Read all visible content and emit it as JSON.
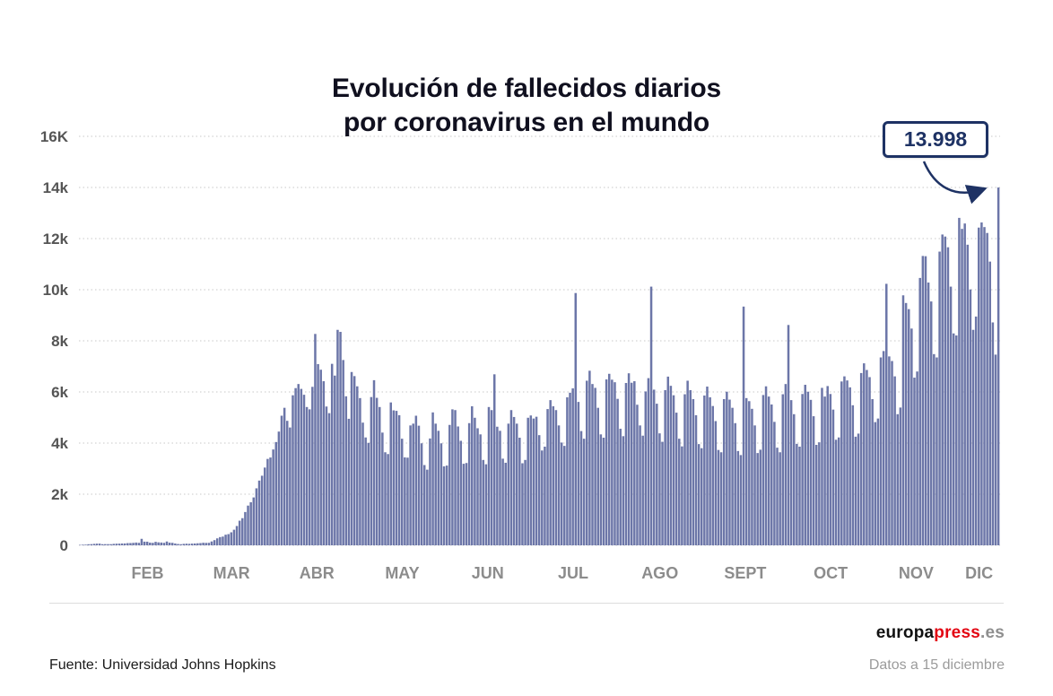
{
  "title": {
    "line1": "Evolución de fallecidos diarios",
    "line2": "por coronavirus en el mundo"
  },
  "annotation": {
    "label": "13.998",
    "value": 13998
  },
  "footer": {
    "source": "Fuente: Universidad Johns Hopkins",
    "brand": {
      "part1": "europa",
      "part2": "press",
      "part3": ".es"
    },
    "date_note": "Datos a 15 diciembre"
  },
  "colors": {
    "bar": "#6c76a8",
    "grid": "#c8c8c8",
    "axis_text": "#555555",
    "month_text": "#8c8c8c",
    "annotation": "#1e3264",
    "brand_red": "#e30613",
    "brand_gray": "#8f8f8f"
  },
  "chart_data": {
    "type": "bar",
    "title": "Evolución de fallecidos diarios por coronavirus en el mundo",
    "xlabel": "",
    "ylabel": "",
    "ylim": [
      0,
      16000
    ],
    "grid": "dotted-horizontal",
    "legend": "none",
    "yticks": [
      {
        "v": 0,
        "label": "0"
      },
      {
        "v": 2000,
        "label": "2k"
      },
      {
        "v": 4000,
        "label": "4k"
      },
      {
        "v": 6000,
        "label": "6k"
      },
      {
        "v": 8000,
        "label": "8k"
      },
      {
        "v": 10000,
        "label": "10k"
      },
      {
        "v": 12000,
        "label": "12k"
      },
      {
        "v": 14000,
        "label": "14k"
      },
      {
        "v": 16000,
        "label": "16K"
      }
    ],
    "months": [
      {
        "label": "",
        "days": 10
      },
      {
        "label": "FEB",
        "days": 29
      },
      {
        "label": "MAR",
        "days": 31
      },
      {
        "label": "ABR",
        "days": 30
      },
      {
        "label": "MAY",
        "days": 31
      },
      {
        "label": "JUN",
        "days": 30
      },
      {
        "label": "JUL",
        "days": 31
      },
      {
        "label": "AGO",
        "days": 31
      },
      {
        "label": "SEPT",
        "days": 30
      },
      {
        "label": "OCT",
        "days": 31
      },
      {
        "label": "NOV",
        "days": 30
      },
      {
        "label": "DIC",
        "days": 15
      }
    ],
    "values": [
      17,
      24,
      26,
      42,
      46,
      57,
      65,
      66,
      43,
      46,
      46,
      45,
      57,
      64,
      66,
      72,
      73,
      86,
      89,
      97,
      108,
      97,
      254,
      143,
      142,
      106,
      98,
      136,
      116,
      109,
      98,
      150,
      106,
      98,
      71,
      52,
      44,
      57,
      64,
      58,
      67,
      72,
      80,
      87,
      101,
      95,
      98,
      151,
      203,
      272,
      322,
      342,
      415,
      438,
      509,
      610,
      756,
      963,
      1062,
      1303,
      1554,
      1684,
      1873,
      2230,
      2533,
      2723,
      3042,
      3380,
      3435,
      3750,
      4040,
      4450,
      5070,
      5380,
      4870,
      4610,
      5870,
      6150,
      6310,
      6120,
      5890,
      5410,
      5320,
      6200,
      8270,
      7090,
      6870,
      6420,
      5430,
      5170,
      7100,
      6640,
      8430,
      8350,
      7250,
      5830,
      4950,
      6780,
      6620,
      6220,
      5760,
      4800,
      4220,
      4010,
      5800,
      6460,
      5770,
      5410,
      4410,
      3640,
      3570,
      5590,
      5280,
      5260,
      5090,
      4170,
      3440,
      3430,
      4690,
      4760,
      5070,
      4680,
      3990,
      3140,
      2960,
      4180,
      5200,
      4760,
      4480,
      3990,
      3090,
      3120,
      4710,
      5320,
      5290,
      4650,
      4090,
      3190,
      3220,
      4780,
      5440,
      4990,
      4580,
      4340,
      3340,
      3170,
      5410,
      5290,
      6690,
      4640,
      4480,
      3390,
      3230,
      4760,
      5290,
      5020,
      4760,
      4210,
      3210,
      3340,
      4990,
      5080,
      4960,
      5030,
      4310,
      3710,
      3860,
      5330,
      5680,
      5440,
      5290,
      4690,
      4020,
      3890,
      5790,
      5970,
      6140,
      9870,
      5610,
      4470,
      4170,
      6440,
      6830,
      6310,
      6160,
      5380,
      4340,
      4210,
      6490,
      6710,
      6480,
      6380,
      5730,
      4560,
      4270,
      6350,
      6730,
      6360,
      6420,
      5500,
      4690,
      4290,
      6020,
      6540,
      10120,
      6090,
      5540,
      4380,
      4050,
      6070,
      6600,
      6240,
      5870,
      5190,
      4170,
      3870,
      5910,
      6440,
      6070,
      5720,
      5090,
      3960,
      3800,
      5860,
      6210,
      5790,
      5450,
      4860,
      3730,
      3640,
      5720,
      6010,
      5700,
      5380,
      4780,
      3690,
      3530,
      9340,
      5760,
      5640,
      5340,
      4690,
      3610,
      3740,
      5880,
      6220,
      5820,
      5510,
      4830,
      3820,
      3640,
      5910,
      6310,
      8620,
      5680,
      5130,
      3970,
      3860,
      5920,
      6280,
      6010,
      5690,
      5050,
      3930,
      4030,
      6160,
      5820,
      6230,
      5920,
      5310,
      4130,
      4220,
      6410,
      6610,
      6450,
      6180,
      5480,
      4250,
      4370,
      6740,
      7120,
      6860,
      6580,
      5720,
      4820,
      4960,
      7350,
      7600,
      10230,
      7390,
      7210,
      6610,
      5130,
      5390,
      9780,
      9480,
      9240,
      8480,
      6560,
      6800,
      10460,
      11320,
      11310,
      10280,
      9540,
      7480,
      7350,
      11490,
      12160,
      12080,
      11660,
      10120,
      8290,
      8210,
      12810,
      12380,
      12590,
      11760,
      10010,
      8430,
      8950,
      12430,
      12630,
      12450,
      12220,
      11100,
      8720,
      7460,
      13998
    ],
    "last_value_annotation": "13.998"
  }
}
